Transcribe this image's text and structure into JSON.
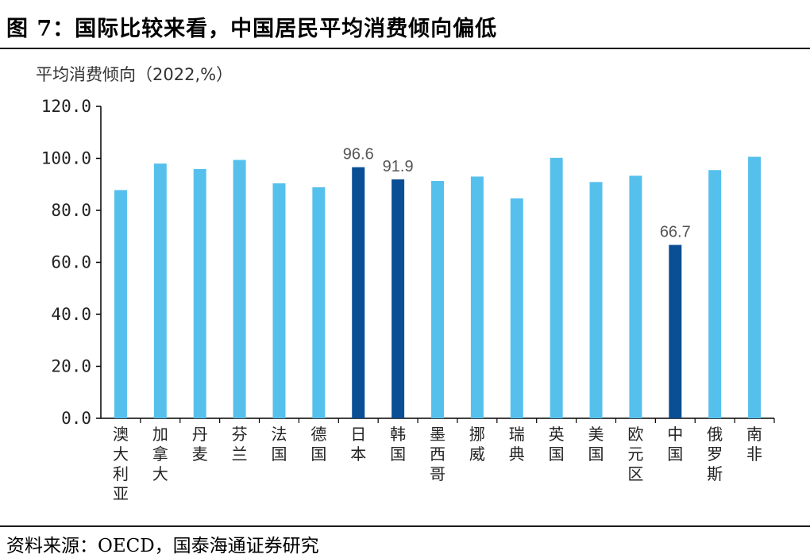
{
  "header": {
    "title": "图 7：国际比较来看，中国居民平均消费倾向偏低"
  },
  "footer": {
    "source": "资料来源：OECD，国泰海通证券研究"
  },
  "chart_data": {
    "type": "bar",
    "ylabel": "平均消费倾向（2022,%）",
    "ylim": [
      0,
      120
    ],
    "yticks": [
      "0.0",
      "20.0",
      "40.0",
      "60.0",
      "80.0",
      "100.0",
      "120.0"
    ],
    "grid": false,
    "categories": [
      "澳大利亚",
      "加拿大",
      "丹麦",
      "芬兰",
      "法国",
      "德国",
      "日本",
      "韩国",
      "墨西哥",
      "挪威",
      "瑞典",
      "英国",
      "美国",
      "欧元区",
      "中国",
      "俄罗斯",
      "南非"
    ],
    "values": [
      87.8,
      98.0,
      95.9,
      99.4,
      90.4,
      88.9,
      96.6,
      91.9,
      91.3,
      93.0,
      84.6,
      100.2,
      90.9,
      93.3,
      66.7,
      95.5,
      100.6
    ],
    "highlight": [
      "日本",
      "韩国",
      "中国"
    ],
    "data_labels": {
      "日本": "96.6",
      "韩国": "91.9",
      "中国": "66.7"
    },
    "colors": {
      "default": "#56c0ec",
      "highlight": "#0a4e95",
      "axis": "#000000"
    }
  }
}
